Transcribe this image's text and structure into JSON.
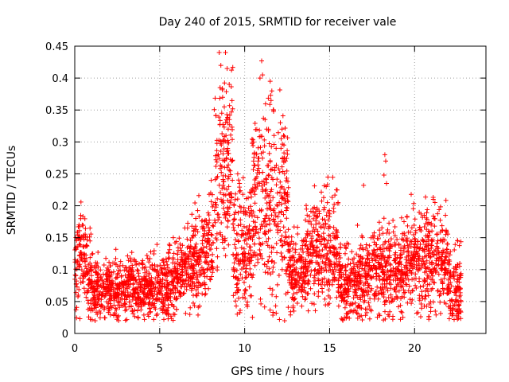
{
  "chart_data": {
    "type": "scatter",
    "title": "Day 240 of 2015, SRMTID for receiver vale",
    "xlabel": "GPS time / hours",
    "ylabel": "SRMTID / TECUs",
    "xlim": [
      0,
      24.2
    ],
    "ylim": [
      0,
      0.45
    ],
    "xticks": [
      0,
      5,
      10,
      15,
      20
    ],
    "yticks": [
      0,
      0.05,
      0.1,
      0.15,
      0.2,
      0.25,
      0.3,
      0.35,
      0.4,
      0.45
    ],
    "ytick_labels": [
      "0",
      "0.05",
      "0.1",
      "0.15",
      "0.2",
      "0.25",
      "0.3",
      "0.35",
      "0.4",
      "0.45"
    ],
    "grid": true,
    "marker": "+",
    "marker_color": "#ff0000",
    "seed": 240,
    "density_points_per_hour": 150,
    "segments": [
      {
        "x": [
          0.0,
          0.35
        ],
        "base": [
          0.09,
          0.13
        ],
        "spread": 0.04
      },
      {
        "x": [
          0.35,
          1.0
        ],
        "base": [
          0.13,
          0.08
        ],
        "spread": 0.035
      },
      {
        "x": [
          1.0,
          5.5
        ],
        "base": [
          0.07,
          0.07
        ],
        "spread": 0.025
      },
      {
        "x": [
          5.5,
          6.8
        ],
        "base": [
          0.07,
          0.1
        ],
        "spread": 0.03
      },
      {
        "x": [
          6.8,
          8.2
        ],
        "base": [
          0.1,
          0.14
        ],
        "spread": 0.04
      },
      {
        "x": [
          8.2,
          9.3
        ],
        "base": [
          0.24,
          0.26
        ],
        "spread": 0.07
      },
      {
        "x": [
          9.3,
          10.4
        ],
        "base": [
          0.13,
          0.14
        ],
        "spread": 0.05
      },
      {
        "x": [
          10.4,
          12.6
        ],
        "base": [
          0.2,
          0.2
        ],
        "spread": 0.08
      },
      {
        "x": [
          12.6,
          13.6
        ],
        "base": [
          0.09,
          0.1
        ],
        "spread": 0.03
      },
      {
        "x": [
          13.6,
          15.5
        ],
        "base": [
          0.13,
          0.13
        ],
        "spread": 0.045
      },
      {
        "x": [
          15.5,
          17.5
        ],
        "base": [
          0.08,
          0.08
        ],
        "spread": 0.03
      },
      {
        "x": [
          17.5,
          19.5
        ],
        "base": [
          0.1,
          0.1
        ],
        "spread": 0.035
      },
      {
        "x": [
          19.5,
          22.0
        ],
        "base": [
          0.11,
          0.12
        ],
        "spread": 0.04
      },
      {
        "x": [
          22.0,
          22.75
        ],
        "base": [
          0.07,
          0.07
        ],
        "spread": 0.03
      }
    ],
    "notable_points": [
      {
        "x": 8.5,
        "y": 0.44
      },
      {
        "x": 8.6,
        "y": 0.42
      },
      {
        "x": 8.55,
        "y": 0.385
      },
      {
        "x": 8.7,
        "y": 0.37
      },
      {
        "x": 8.8,
        "y": 0.355
      },
      {
        "x": 8.65,
        "y": 0.345
      },
      {
        "x": 9.0,
        "y": 0.33
      },
      {
        "x": 8.9,
        "y": 0.31
      },
      {
        "x": 8.75,
        "y": 0.3
      },
      {
        "x": 8.95,
        "y": 0.285
      },
      {
        "x": 9.1,
        "y": 0.335
      },
      {
        "x": 11.0,
        "y": 0.427
      },
      {
        "x": 11.05,
        "y": 0.405
      },
      {
        "x": 10.9,
        "y": 0.4
      },
      {
        "x": 11.5,
        "y": 0.395
      },
      {
        "x": 11.6,
        "y": 0.38
      },
      {
        "x": 11.55,
        "y": 0.365
      },
      {
        "x": 11.7,
        "y": 0.35
      },
      {
        "x": 11.2,
        "y": 0.335
      },
      {
        "x": 11.3,
        "y": 0.32
      },
      {
        "x": 12.1,
        "y": 0.33
      },
      {
        "x": 12.2,
        "y": 0.32
      },
      {
        "x": 12.15,
        "y": 0.305
      },
      {
        "x": 11.85,
        "y": 0.29
      },
      {
        "x": 10.8,
        "y": 0.27
      },
      {
        "x": 12.3,
        "y": 0.27
      },
      {
        "x": 12.35,
        "y": 0.25
      },
      {
        "x": 10.75,
        "y": 0.255
      },
      {
        "x": 14.9,
        "y": 0.245
      },
      {
        "x": 14.8,
        "y": 0.23
      },
      {
        "x": 15.4,
        "y": 0.225
      },
      {
        "x": 15.5,
        "y": 0.205
      },
      {
        "x": 17.0,
        "y": 0.232
      },
      {
        "x": 8.0,
        "y": 0.22
      },
      {
        "x": 18.25,
        "y": 0.28
      },
      {
        "x": 18.3,
        "y": 0.27
      },
      {
        "x": 18.2,
        "y": 0.248
      },
      {
        "x": 18.35,
        "y": 0.235
      },
      {
        "x": 21.1,
        "y": 0.21
      },
      {
        "x": 21.2,
        "y": 0.205
      },
      {
        "x": 9.7,
        "y": 0.235
      },
      {
        "x": 10.4,
        "y": 0.225
      },
      {
        "x": 0.35,
        "y": 0.185
      },
      {
        "x": 0.25,
        "y": 0.17
      },
      {
        "x": 0.9,
        "y": 0.165
      },
      {
        "x": 1.2,
        "y": 0.02
      },
      {
        "x": 2.3,
        "y": 0.028
      },
      {
        "x": 4.1,
        "y": 0.022
      },
      {
        "x": 4.3,
        "y": 0.03
      },
      {
        "x": 12.9,
        "y": 0.035
      },
      {
        "x": 16.8,
        "y": 0.04
      },
      {
        "x": 9.5,
        "y": 0.043
      },
      {
        "x": 22.5,
        "y": 0.035
      },
      {
        "x": 22.7,
        "y": 0.035
      }
    ]
  }
}
